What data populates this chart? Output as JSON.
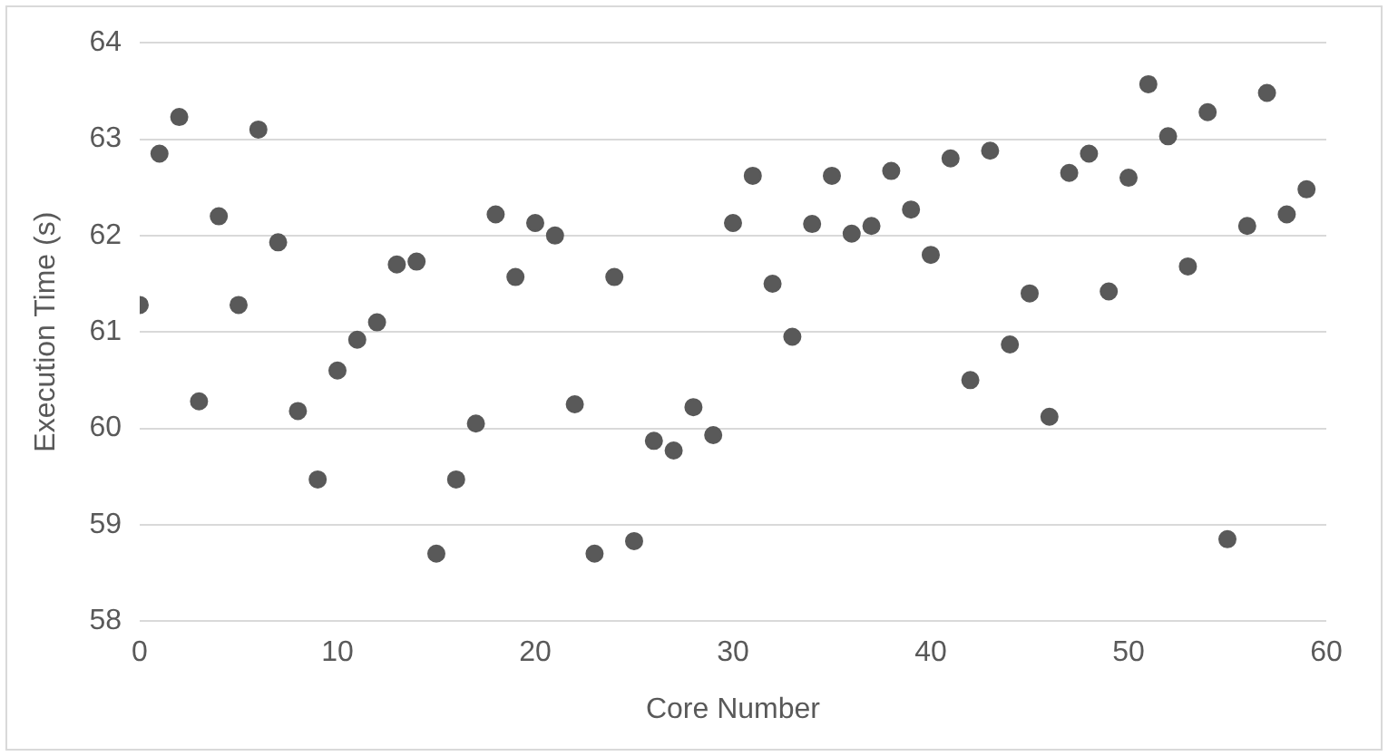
{
  "chart_data": {
    "type": "scatter",
    "xlabel": "Core Number",
    "ylabel": "Execution Time (s)",
    "x": [
      0,
      1,
      2,
      3,
      4,
      5,
      6,
      7,
      8,
      9,
      10,
      11,
      12,
      13,
      14,
      15,
      16,
      17,
      18,
      19,
      20,
      21,
      22,
      23,
      24,
      25,
      26,
      27,
      28,
      29,
      30,
      31,
      32,
      33,
      34,
      35,
      36,
      37,
      38,
      39,
      40,
      41,
      42,
      43,
      44,
      45,
      46,
      47,
      48,
      49,
      50,
      51,
      52,
      53,
      54,
      55,
      56,
      57,
      58,
      59
    ],
    "series": [
      {
        "color": "#595959",
        "values": [
          61.28,
          62.85,
          63.23,
          60.28,
          62.2,
          61.28,
          63.1,
          61.93,
          60.18,
          59.47,
          60.6,
          60.92,
          61.1,
          61.7,
          61.73,
          58.7,
          59.47,
          60.05,
          62.22,
          61.57,
          62.13,
          62.0,
          60.25,
          58.7,
          61.57,
          58.83,
          59.87,
          59.77,
          60.22,
          59.93,
          62.13,
          62.62,
          61.5,
          60.95,
          62.12,
          62.62,
          62.02,
          62.1,
          62.67,
          62.27,
          61.8,
          62.8,
          60.5,
          62.88,
          60.87,
          61.4,
          60.12,
          62.65,
          62.85,
          61.42,
          62.6,
          63.57,
          63.03,
          61.68,
          63.28,
          58.85,
          62.1,
          63.48,
          62.22,
          62.48
        ]
      }
    ],
    "xlim": [
      0,
      60
    ],
    "xticks": [
      0,
      10,
      20,
      30,
      40,
      50,
      60
    ],
    "ylim": [
      58,
      64
    ],
    "yticks": [
      58,
      59,
      60,
      61,
      62,
      63,
      64
    ],
    "grid": "y",
    "marker": "circle"
  }
}
